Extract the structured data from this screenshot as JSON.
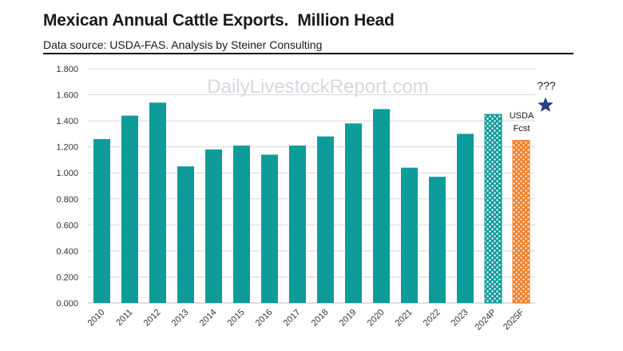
{
  "header": {
    "title": "Mexican Annual Cattle Exports.  Million Head",
    "subtitle": "Data source: USDA-FAS. Analysis by Steiner Consulting"
  },
  "watermark": "DailyLivestockReport.com",
  "annotations": {
    "forecast_label_line1": "USDA",
    "forecast_label_line2": "Fcst",
    "question": "???"
  },
  "colors": {
    "bar": "#0e9c9a",
    "forecast_bar": "#f07f2e",
    "star": "#2b3f8c",
    "grid": "#d9d9d9"
  },
  "chart_data": {
    "type": "bar",
    "categories": [
      "2010",
      "2011",
      "2012",
      "2013",
      "2014",
      "2015",
      "2016",
      "2017",
      "2018",
      "2019",
      "2020",
      "2021",
      "2022",
      "2023",
      "2024P",
      "2025F"
    ],
    "values": [
      1.26,
      1.44,
      1.54,
      1.05,
      1.18,
      1.21,
      1.14,
      1.21,
      1.28,
      1.38,
      1.49,
      1.04,
      0.97,
      1.3,
      1.45,
      1.25
    ],
    "styles": [
      "solid",
      "solid",
      "solid",
      "solid",
      "solid",
      "solid",
      "solid",
      "solid",
      "solid",
      "solid",
      "solid",
      "solid",
      "solid",
      "solid",
      "hatched-teal",
      "hatched-orange"
    ],
    "ylim": [
      0,
      1.8
    ],
    "yticks": [
      "0.000",
      "0.200",
      "0.400",
      "0.600",
      "0.800",
      "1.000",
      "1.200",
      "1.400",
      "1.600",
      "1.800"
    ],
    "star_value": 1.52,
    "grid": "horizontal",
    "legend": "none"
  }
}
